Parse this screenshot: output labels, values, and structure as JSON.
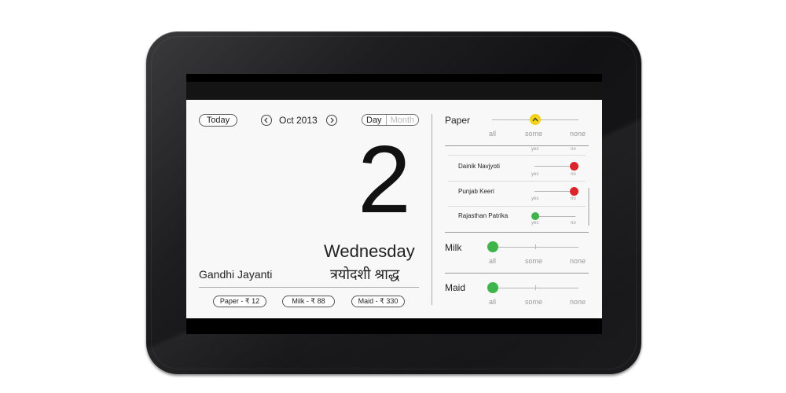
{
  "calendar": {
    "today_label": "Today",
    "month_label": "Oct 2013",
    "view_day": "Day",
    "view_month": "Month",
    "day_number": "2",
    "weekday": "Wednesday",
    "event": "Gandhi Jayanti",
    "hindi_tithi": "त्रयोदशी श्राद्ध"
  },
  "totals": {
    "paper": "Paper - ₹ 12",
    "milk": "Milk - ₹ 88",
    "maid": "Maid - ₹ 330"
  },
  "services": {
    "paper": {
      "title": "Paper",
      "level": "some",
      "labels": {
        "all": "all",
        "some": "some",
        "none": "none"
      },
      "yes": "yes",
      "no": "no",
      "newspapers": [
        {
          "name": "Dainik Navjyoti",
          "value": "no",
          "color": "#d9262b"
        },
        {
          "name": "Punjab Keeri",
          "value": "no",
          "color": "#d9262b"
        },
        {
          "name": "Rajasthan Patrika",
          "value": "yes",
          "color": "#3db54a"
        }
      ]
    },
    "milk": {
      "title": "Milk",
      "level": "all",
      "labels": {
        "all": "all",
        "some": "some",
        "none": "none"
      }
    },
    "maid": {
      "title": "Maid",
      "level": "all",
      "labels": {
        "all": "all",
        "some": "some",
        "none": "none"
      }
    }
  },
  "colors": {
    "paper_knob": "#f2d21a",
    "green": "#3db54a",
    "red": "#d9262b"
  },
  "icons": {
    "prev": "chevron-left-icon",
    "next": "chevron-right-icon",
    "paper_knob": "chevron-up-icon"
  }
}
